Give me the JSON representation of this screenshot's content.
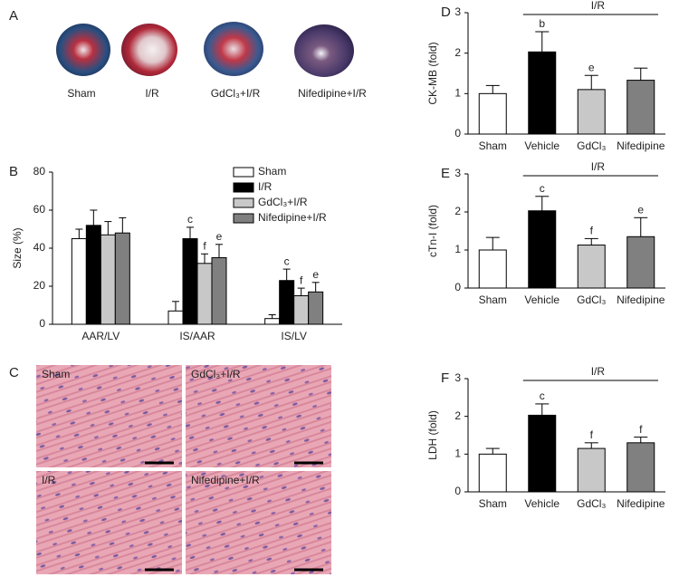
{
  "panel_a": {
    "label": "A",
    "images": [
      "Sham",
      "I/R",
      "GdCl₃+I/R",
      "Nifedipine+I/R"
    ]
  },
  "panel_c": {
    "label": "C",
    "images": [
      "Sham",
      "GdCl₃+I/R",
      "I/R",
      "Nifedipine+I/R"
    ]
  },
  "chart_data": [
    {
      "type": "bar",
      "panel": "B",
      "y_label": "Size (%)",
      "categories": [
        "AAR/LV",
        "IS/AAR",
        "IS/LV"
      ],
      "ylim": [
        0,
        80
      ],
      "yticks": [
        0,
        20,
        40,
        60,
        80
      ],
      "grid": false,
      "legend": "upper right",
      "series": [
        {
          "name": "Sham",
          "color": "#ffffff",
          "values": [
            45,
            7,
            3
          ],
          "errors": [
            5,
            5,
            2
          ],
          "letters": [
            null,
            null,
            null
          ]
        },
        {
          "name": "I/R",
          "color": "#000000",
          "values": [
            52,
            45,
            23
          ],
          "errors": [
            8,
            6,
            6
          ],
          "letters": [
            null,
            "c",
            "c"
          ]
        },
        {
          "name": "GdCl₃+I/R",
          "color": "#c8c8c8",
          "values": [
            47,
            32,
            15
          ],
          "errors": [
            7,
            5,
            4
          ],
          "letters": [
            null,
            "f",
            "f"
          ]
        },
        {
          "name": "Nifedipine+I/R",
          "color": "#808080",
          "values": [
            48,
            35,
            17
          ],
          "errors": [
            8,
            7,
            5
          ],
          "letters": [
            null,
            "e",
            "e"
          ]
        }
      ]
    },
    {
      "type": "bar",
      "panel": "D",
      "y_label": "CK-MB (fold)",
      "bracket_label": "I/R",
      "categories": [
        "Sham",
        "Vehicle",
        "GdCl₃",
        "Nifedipine"
      ],
      "ylim": [
        0,
        3
      ],
      "yticks": [
        0,
        1,
        2,
        3
      ],
      "grid": false,
      "colors": [
        "#ffffff",
        "#000000",
        "#c8c8c8",
        "#808080"
      ],
      "values": [
        1.0,
        2.03,
        1.1,
        1.33
      ],
      "errors": [
        0.2,
        0.5,
        0.35,
        0.3
      ],
      "letters": [
        null,
        "b",
        "e",
        null
      ]
    },
    {
      "type": "bar",
      "panel": "E",
      "y_label": "cTn-I (fold)",
      "bracket_label": "I/R",
      "categories": [
        "Sham",
        "Vehicle",
        "GdCl₃",
        "Nifedipine"
      ],
      "ylim": [
        0,
        3
      ],
      "yticks": [
        0,
        1,
        2,
        3
      ],
      "grid": false,
      "colors": [
        "#ffffff",
        "#000000",
        "#c8c8c8",
        "#808080"
      ],
      "values": [
        1.0,
        2.03,
        1.13,
        1.35
      ],
      "errors": [
        0.33,
        0.38,
        0.17,
        0.5
      ],
      "letters": [
        null,
        "c",
        "f",
        "e"
      ]
    },
    {
      "type": "bar",
      "panel": "F",
      "y_label": "LDH (fold)",
      "bracket_label": "I/R",
      "categories": [
        "Sham",
        "Vehicle",
        "GdCl₃",
        "Nifedipine"
      ],
      "ylim": [
        0,
        3
      ],
      "yticks": [
        0,
        1,
        2,
        3
      ],
      "grid": false,
      "colors": [
        "#ffffff",
        "#000000",
        "#c8c8c8",
        "#808080"
      ],
      "values": [
        1.0,
        2.03,
        1.15,
        1.3
      ],
      "errors": [
        0.15,
        0.3,
        0.15,
        0.15
      ],
      "letters": [
        null,
        "c",
        "f",
        "f"
      ]
    }
  ]
}
